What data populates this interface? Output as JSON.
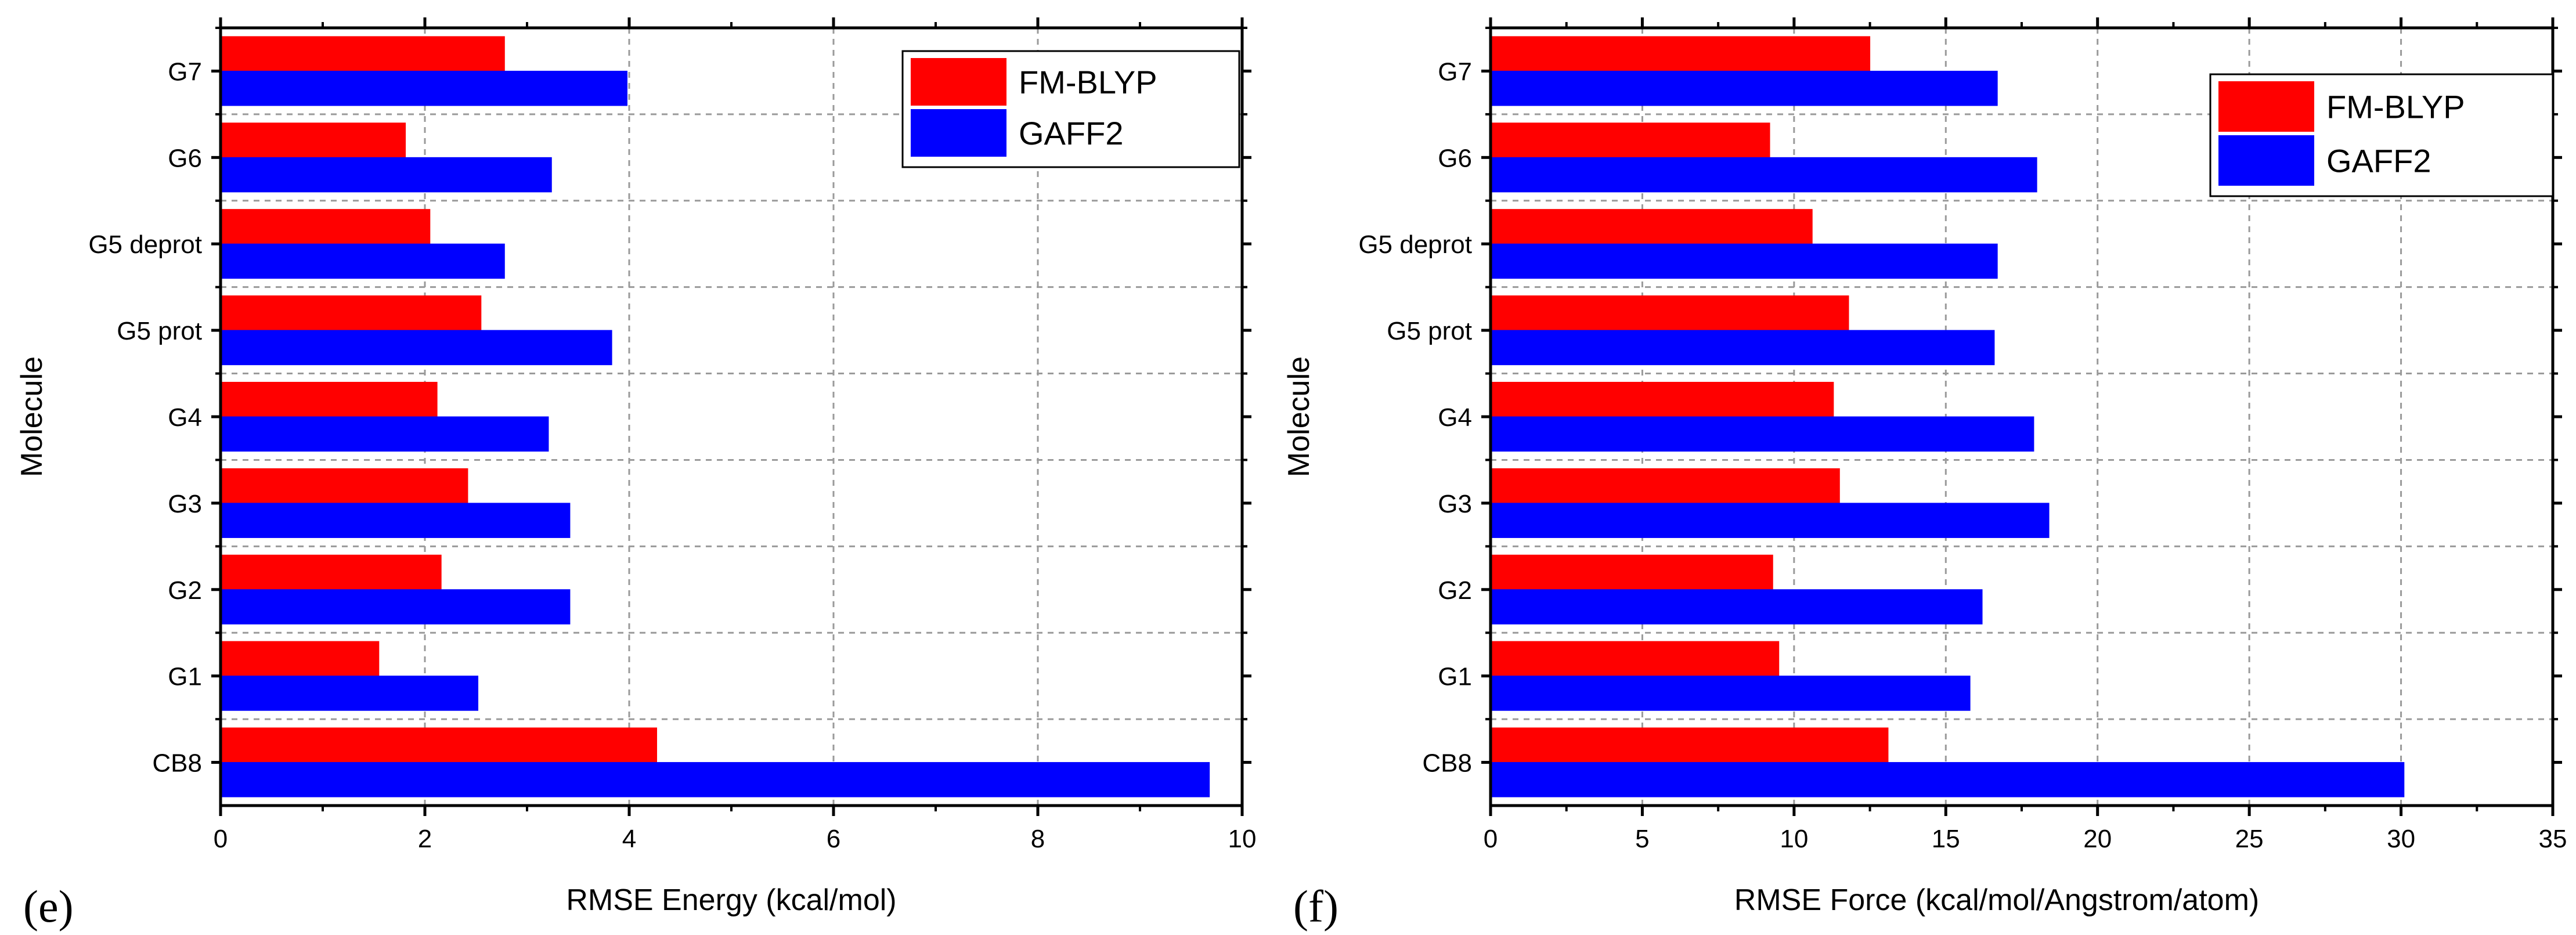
{
  "chart_data": [
    {
      "type": "bar",
      "orientation": "horizontal",
      "panel_label": "(e)",
      "categories": [
        "CB8",
        "G1",
        "G2",
        "G3",
        "G4",
        "G5 prot",
        "G5 deprot",
        "G6",
        "G7"
      ],
      "series": [
        {
          "name": "FM-BLYP",
          "color": "#ff0000",
          "values": [
            4.27,
            1.55,
            2.16,
            2.42,
            2.12,
            2.55,
            2.05,
            1.81,
            2.78
          ]
        },
        {
          "name": "GAFF2",
          "color": "#0000ff",
          "values": [
            9.68,
            2.52,
            3.42,
            3.42,
            3.21,
            3.83,
            2.78,
            3.24,
            3.98
          ]
        }
      ],
      "xlabel": "RMSE Energy (kcal/mol)",
      "ylabel": "Molecule",
      "xlim": [
        0,
        10
      ],
      "xticks": [
        0,
        2,
        4,
        6,
        8,
        10
      ],
      "grid": true,
      "legend_position": "top-right"
    },
    {
      "type": "bar",
      "orientation": "horizontal",
      "panel_label": "(f)",
      "categories": [
        "CB8",
        "G1",
        "G2",
        "G3",
        "G4",
        "G5 prot",
        "G5 deprot",
        "G6",
        "G7"
      ],
      "series": [
        {
          "name": "FM-BLYP",
          "color": "#ff0000",
          "values": [
            13.1,
            9.5,
            9.3,
            11.5,
            11.3,
            11.8,
            10.6,
            9.2,
            12.5
          ]
        },
        {
          "name": "GAFF2",
          "color": "#0000ff",
          "values": [
            30.1,
            15.8,
            16.2,
            18.4,
            17.9,
            16.6,
            16.7,
            18.0,
            16.7
          ]
        }
      ],
      "xlabel": "RMSE Force (kcal/mol/Angstrom/atom)",
      "ylabel": "Molecule",
      "xlim": [
        0,
        35
      ],
      "xticks": [
        0,
        5,
        10,
        15,
        20,
        25,
        30,
        35
      ],
      "grid": true,
      "legend_position": "top-right"
    }
  ]
}
